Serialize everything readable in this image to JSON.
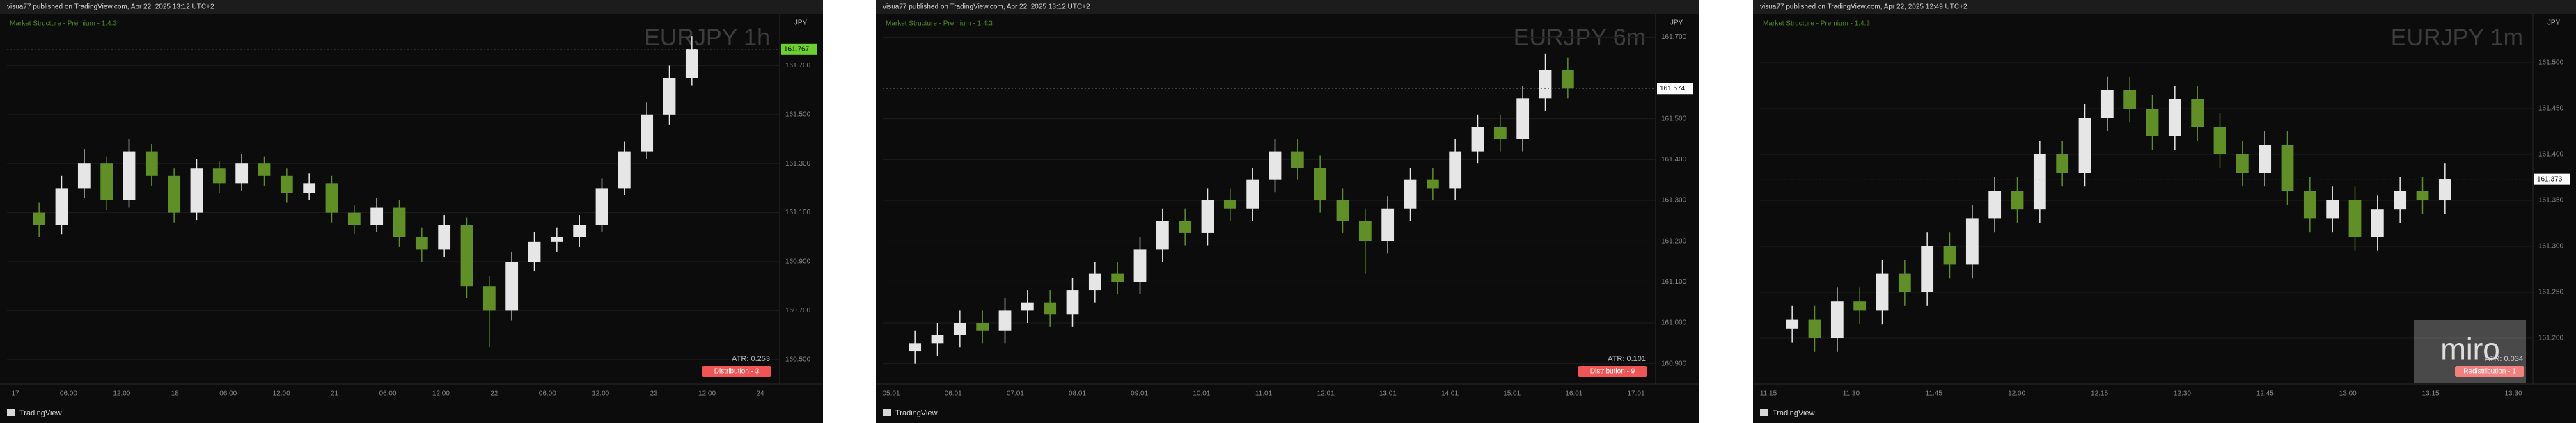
{
  "chart_data": [
    {
      "type": "candlestick",
      "header": "visua77 published on TradingView.com, Apr 22, 2025 13:12 UTC+2",
      "indicator": "Market Structure - Premium - 1.4.3",
      "symbol": "EURJPY 1h",
      "currency": "JPY",
      "atr": "ATR: 0.253",
      "badge": "Distribution - 3",
      "footer": "TradingView",
      "up_color": "#e6e6e6",
      "down_color": "#5f8f25",
      "last_price": 161.767,
      "last_price_color": "#6ccf2e",
      "ylim": [
        160.4,
        161.9
      ],
      "yticks": [
        {
          "value": 160.5,
          "label": "160.500"
        },
        {
          "value": 160.7,
          "label": "160.700"
        },
        {
          "value": 160.9,
          "label": "160.900"
        },
        {
          "value": 161.1,
          "label": "161.100"
        },
        {
          "value": 161.3,
          "label": "161.300"
        },
        {
          "value": 161.5,
          "label": "161.500"
        },
        {
          "value": 161.7,
          "label": "161.700"
        }
      ],
      "time_labels": [
        "17",
        "06:00",
        "12:00",
        "18",
        "06:00",
        "12:00",
        "21",
        "06:00",
        "12:00",
        "22",
        "06:00",
        "12:00",
        "23",
        "12:00",
        "24"
      ],
      "open": [
        161.1,
        161.05,
        161.2,
        161.3,
        161.15,
        161.35,
        161.25,
        161.1,
        161.28,
        161.22,
        161.3,
        161.25,
        161.18,
        161.22,
        161.1,
        161.05,
        161.12,
        161.0,
        160.95,
        161.05,
        160.8,
        160.7,
        160.9,
        160.98,
        161.0,
        161.05,
        161.2,
        161.35,
        161.5,
        161.65
      ],
      "high": [
        161.14,
        161.25,
        161.36,
        161.33,
        161.4,
        161.38,
        161.28,
        161.32,
        161.31,
        161.34,
        161.33,
        161.28,
        161.26,
        161.25,
        161.13,
        161.16,
        161.15,
        161.04,
        161.09,
        161.08,
        160.84,
        160.94,
        161.02,
        161.04,
        161.09,
        161.24,
        161.39,
        161.55,
        161.7,
        161.82
      ],
      "low": [
        161.0,
        161.01,
        161.16,
        161.11,
        161.12,
        161.21,
        161.06,
        161.07,
        161.18,
        161.19,
        161.21,
        161.14,
        161.15,
        161.06,
        161.01,
        161.02,
        160.96,
        160.9,
        160.92,
        160.75,
        160.55,
        160.66,
        160.86,
        160.94,
        160.96,
        161.02,
        161.17,
        161.32,
        161.46,
        161.62
      ],
      "close": [
        161.05,
        161.2,
        161.3,
        161.15,
        161.35,
        161.25,
        161.1,
        161.28,
        161.22,
        161.3,
        161.25,
        161.18,
        161.22,
        161.1,
        161.05,
        161.12,
        161.0,
        160.95,
        161.05,
        160.8,
        160.7,
        160.9,
        160.98,
        161.0,
        161.05,
        161.2,
        161.35,
        161.5,
        161.65,
        161.767
      ]
    },
    {
      "type": "candlestick",
      "header": "visua77 published on TradingView.com, Apr 22, 2025 13:12 UTC+2",
      "indicator": "Market Structure - Premium - 1.4.3",
      "symbol": "EURJPY 6m",
      "currency": "JPY",
      "atr": "ATR: 0.101",
      "badge": "Distribution - 9",
      "footer": "TradingView",
      "up_color": "#e6e6e6",
      "down_color": "#5f8f25",
      "last_price": 161.574,
      "last_price_color": "#ffffff",
      "ylim": [
        160.85,
        161.75
      ],
      "yticks": [
        {
          "value": 160.9,
          "label": "160.900"
        },
        {
          "value": 161.0,
          "label": "161.000"
        },
        {
          "value": 161.1,
          "label": "161.100"
        },
        {
          "value": 161.2,
          "label": "161.200"
        },
        {
          "value": 161.3,
          "label": "161.300"
        },
        {
          "value": 161.4,
          "label": "161.400"
        },
        {
          "value": 161.5,
          "label": "161.500"
        },
        {
          "value": 161.7,
          "label": "161.700"
        }
      ],
      "time_labels": [
        "05:01",
        "06:01",
        "07:01",
        "08:01",
        "09:01",
        "10:01",
        "11:01",
        "12:01",
        "13:01",
        "14:01",
        "15:01",
        "16:01",
        "17:01"
      ],
      "open": [
        160.93,
        160.95,
        160.97,
        161.0,
        160.98,
        161.03,
        161.05,
        161.02,
        161.08,
        161.12,
        161.1,
        161.18,
        161.25,
        161.22,
        161.3,
        161.28,
        161.35,
        161.42,
        161.38,
        161.3,
        161.25,
        161.2,
        161.28,
        161.35,
        161.33,
        161.42,
        161.48,
        161.45,
        161.55,
        161.62
      ],
      "high": [
        160.98,
        161.0,
        161.03,
        161.03,
        161.06,
        161.08,
        161.08,
        161.11,
        161.15,
        161.15,
        161.21,
        161.28,
        161.28,
        161.33,
        161.33,
        161.38,
        161.45,
        161.45,
        161.41,
        161.33,
        161.28,
        161.31,
        161.38,
        161.38,
        161.45,
        161.51,
        161.51,
        161.58,
        161.66,
        161.65
      ],
      "low": [
        160.9,
        160.92,
        160.94,
        160.95,
        160.95,
        161.0,
        160.99,
        160.99,
        161.05,
        161.07,
        161.07,
        161.15,
        161.19,
        161.19,
        161.25,
        161.25,
        161.32,
        161.35,
        161.27,
        161.22,
        161.12,
        161.17,
        161.25,
        161.3,
        161.3,
        161.39,
        161.42,
        161.42,
        161.52,
        161.55
      ],
      "close": [
        160.95,
        160.97,
        161.0,
        160.98,
        161.03,
        161.05,
        161.02,
        161.08,
        161.12,
        161.1,
        161.18,
        161.25,
        161.22,
        161.3,
        161.28,
        161.35,
        161.42,
        161.38,
        161.3,
        161.25,
        161.2,
        161.28,
        161.35,
        161.33,
        161.42,
        161.48,
        161.45,
        161.55,
        161.62,
        161.574
      ]
    },
    {
      "type": "candlestick",
      "header": "visua77 published on TradingView.com, Apr 22, 2025 12:49 UTC+2",
      "indicator": "Market Structure - Premium - 1.4.3",
      "symbol": "EURJPY 1m",
      "currency": "JPY",
      "atr": "ATR: 0.034",
      "badge": "Redistribution - 1",
      "footer": "TradingView",
      "watermark": "miro",
      "up_color": "#e6e6e6",
      "down_color": "#5f8f25",
      "last_price": 161.373,
      "last_price_color": "#ffffff",
      "ylim": [
        161.15,
        161.55
      ],
      "yticks": [
        {
          "value": 161.2,
          "label": "161.200"
        },
        {
          "value": 161.25,
          "label": "161.250"
        },
        {
          "value": 161.3,
          "label": "161.300"
        },
        {
          "value": 161.35,
          "label": "161.350"
        },
        {
          "value": 161.4,
          "label": "161.400"
        },
        {
          "value": 161.45,
          "label": "161.450"
        },
        {
          "value": 161.5,
          "label": "161.500"
        }
      ],
      "time_labels": [
        "11:15",
        "11:30",
        "11:45",
        "12:00",
        "12:15",
        "12:30",
        "12:45",
        "13:00",
        "13:15",
        "13:30"
      ],
      "open": [
        161.21,
        161.22,
        161.2,
        161.24,
        161.23,
        161.27,
        161.25,
        161.3,
        161.28,
        161.33,
        161.36,
        161.34,
        161.4,
        161.38,
        161.44,
        161.47,
        161.45,
        161.42,
        161.46,
        161.43,
        161.4,
        161.38,
        161.41,
        161.36,
        161.33,
        161.35,
        161.31,
        161.34,
        161.36,
        161.35
      ],
      "high": [
        161.235,
        161.235,
        161.255,
        161.255,
        161.285,
        161.285,
        161.315,
        161.315,
        161.345,
        161.375,
        161.375,
        161.415,
        161.415,
        161.455,
        161.485,
        161.485,
        161.465,
        161.475,
        161.475,
        161.445,
        161.415,
        161.425,
        161.425,
        161.375,
        161.365,
        161.365,
        161.355,
        161.375,
        161.375,
        161.39
      ],
      "low": [
        161.195,
        161.185,
        161.185,
        161.215,
        161.215,
        161.235,
        161.235,
        161.265,
        161.265,
        161.315,
        161.325,
        161.325,
        161.365,
        161.365,
        161.425,
        161.435,
        161.405,
        161.405,
        161.415,
        161.385,
        161.365,
        161.365,
        161.345,
        161.315,
        161.315,
        161.295,
        161.295,
        161.325,
        161.335,
        161.335
      ],
      "close": [
        161.22,
        161.2,
        161.24,
        161.23,
        161.27,
        161.25,
        161.3,
        161.28,
        161.33,
        161.36,
        161.34,
        161.4,
        161.38,
        161.44,
        161.47,
        161.45,
        161.42,
        161.46,
        161.43,
        161.4,
        161.38,
        161.41,
        161.36,
        161.33,
        161.35,
        161.31,
        161.34,
        161.36,
        161.35,
        161.373
      ]
    }
  ]
}
